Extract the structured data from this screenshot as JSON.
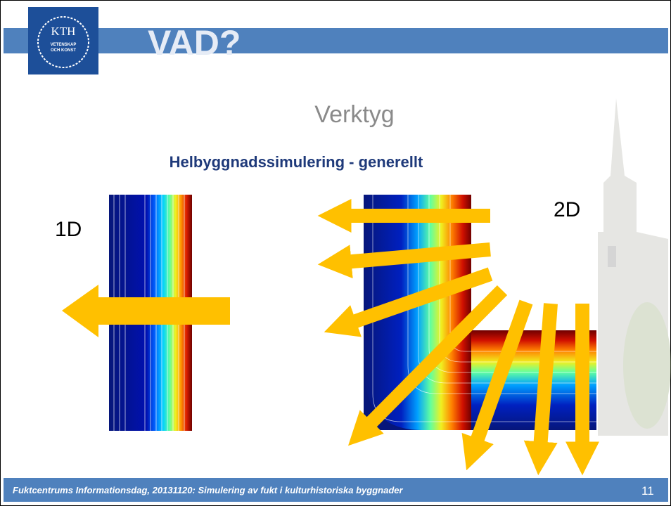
{
  "header": {
    "logo": {
      "name": "KTH",
      "lines": [
        "VETENSKAP",
        "OCH KONST"
      ]
    },
    "title": "VAD?"
  },
  "subtitle": "Verktyg",
  "heading": "Helbyggnadssimulering - generellt",
  "figures": {
    "left_label": "1D",
    "right_label": "2D"
  },
  "footer": {
    "text": "Fuktcentrums Informationsdag, 20131120: Simulering av fukt i kulturhistoriska byggnader",
    "page": "11"
  }
}
